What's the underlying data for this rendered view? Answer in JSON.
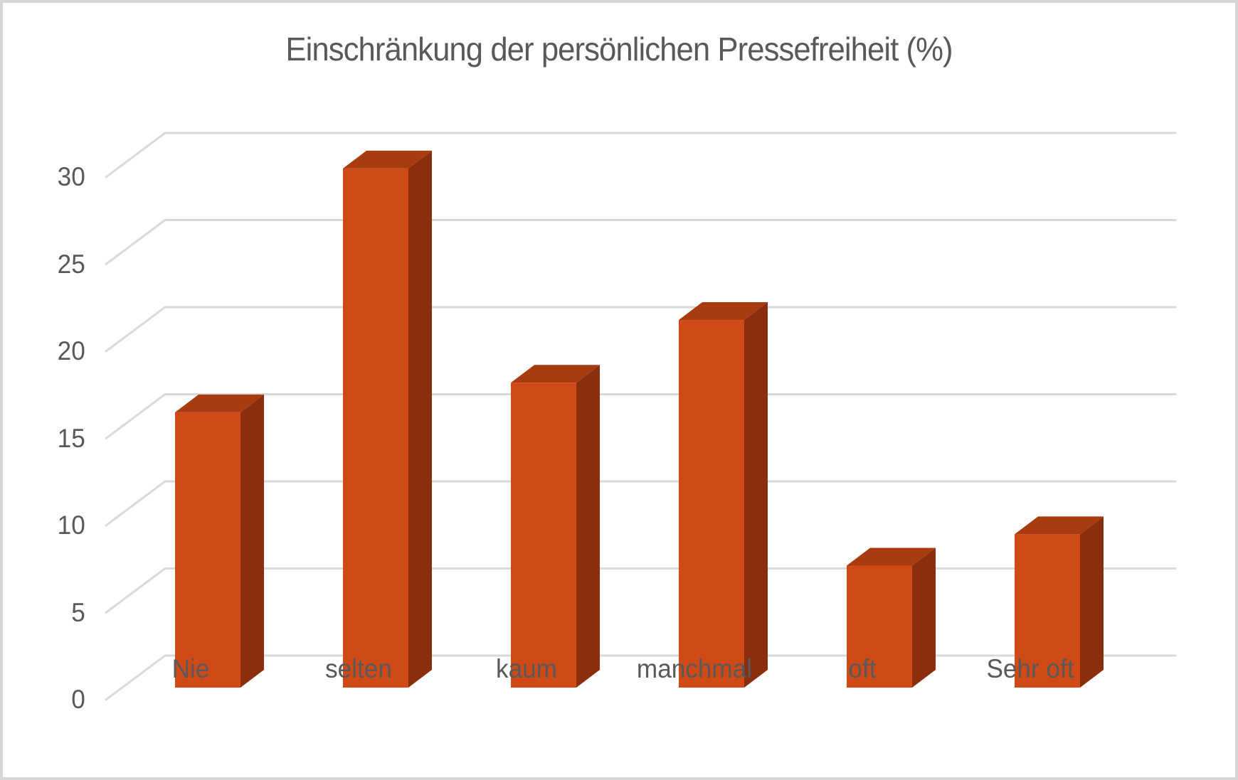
{
  "chart_data": {
    "type": "bar",
    "style": "3d-column",
    "title": "Einschränkung der persönlichen Pressefreiheit (%)",
    "categories": [
      "Nie",
      "selten",
      "kaum",
      "manchmal",
      "oft",
      "Sehr oft"
    ],
    "values": [
      15.8,
      29.8,
      17.5,
      21.1,
      7,
      8.8
    ],
    "series_name": "Einschränkung der persönlichen Pressefreiheit",
    "xlabel": "",
    "ylabel": "",
    "ylim": [
      0,
      30
    ],
    "ytick_step": 5,
    "yticks": [
      0,
      5,
      10,
      15,
      20,
      25,
      30
    ],
    "grid": true,
    "legend": false,
    "colors": {
      "bar_front": "#D04A18",
      "bar_top": "#A83C10",
      "bar_side": "#8B2E0E",
      "gridline": "#D9D9D9",
      "text": "#595959",
      "frame_border": "#D6D6D6",
      "background": "#FFFFFF"
    }
  }
}
